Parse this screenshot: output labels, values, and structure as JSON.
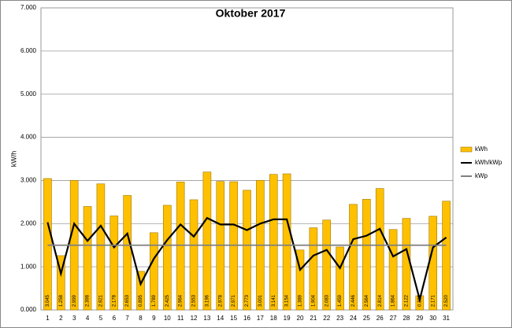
{
  "chart_data": {
    "type": "combo",
    "title": "Oktober 2017",
    "y_label": "kW/h",
    "categories": [
      "1",
      "2",
      "3",
      "4",
      "5",
      "6",
      "7",
      "8",
      "9",
      "10",
      "11",
      "12",
      "13",
      "14",
      "15",
      "16",
      "17",
      "18",
      "19",
      "20",
      "21",
      "22",
      "23",
      "24",
      "25",
      "26",
      "27",
      "28",
      "29",
      "30",
      "31"
    ],
    "series": [
      {
        "name": "kWh",
        "type": "bar",
        "color": "#ffc000",
        "values": [
          3.045,
          1.258,
          2.999,
          2.398,
          2.921,
          2.178,
          2.653,
          0.895,
          1.789,
          2.425,
          2.964,
          2.553,
          3.196,
          2.978,
          2.971,
          2.773,
          3.001,
          3.141,
          3.154,
          1.389,
          1.904,
          2.083,
          1.459,
          2.446,
          2.564,
          2.814,
          1.864,
          2.122,
          0.33,
          2.171,
          2.52
        ],
        "value_labels": [
          "3.045",
          "1.258",
          "2.999",
          "2.398",
          "2.921",
          "2.178",
          "2.653",
          "0.895",
          "1.789",
          "2.425",
          "2.964",
          "2.553",
          "3.196",
          "2.978",
          "2.971",
          "2.773",
          "3.001",
          "3.141",
          "3.154",
          "1.389",
          "1.904",
          "2.083",
          "1.459",
          "2.446",
          "2.564",
          "2.814",
          "1.864",
          "2.122",
          "0.330",
          "2.171",
          "2.520"
        ]
      },
      {
        "name": "kWh/kWp",
        "type": "line",
        "color": "#000000",
        "values": [
          2.03,
          0.84,
          2.0,
          1.6,
          1.95,
          1.45,
          1.77,
          0.6,
          1.19,
          1.62,
          1.98,
          1.7,
          2.13,
          1.98,
          1.98,
          1.85,
          2.0,
          2.1,
          2.1,
          0.93,
          1.26,
          1.39,
          0.97,
          1.64,
          1.72,
          1.88,
          1.24,
          1.41,
          0.24,
          1.45,
          1.68
        ]
      },
      {
        "name": "kWp",
        "type": "line",
        "color": "#808080",
        "values": [
          1.5,
          1.5,
          1.5,
          1.5,
          1.5,
          1.5,
          1.5,
          1.5,
          1.5,
          1.5,
          1.5,
          1.5,
          1.5,
          1.5,
          1.5,
          1.5,
          1.5,
          1.5,
          1.5,
          1.5,
          1.5,
          1.5,
          1.5,
          1.5,
          1.5,
          1.5,
          1.5,
          1.5,
          1.5,
          1.5,
          1.5
        ]
      }
    ],
    "ylim": [
      0,
      7
    ],
    "yticks": [
      {
        "value": 0,
        "label": "0.000"
      },
      {
        "value": 1,
        "label": "1.000"
      },
      {
        "value": 2,
        "label": "2.000"
      },
      {
        "value": 3,
        "label": "3.000"
      },
      {
        "value": 4,
        "label": "4.000"
      },
      {
        "value": 5,
        "label": "5.000"
      },
      {
        "value": 6,
        "label": "6.000"
      },
      {
        "value": 7,
        "label": "7.000"
      }
    ],
    "grid": true,
    "legend": "right"
  }
}
